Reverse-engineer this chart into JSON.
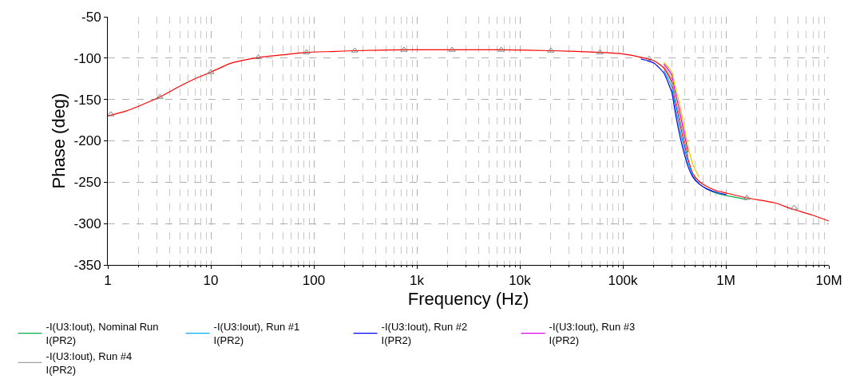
{
  "chart_data": {
    "type": "line",
    "xlabel": "Frequency (Hz)",
    "ylabel": "Phase (deg)",
    "log": "x",
    "grid": true,
    "legend": "bottom",
    "line_style": "solid",
    "xlim": [
      1,
      10000000
    ],
    "xticks": [
      1,
      10,
      100,
      {
        "value": 1000,
        "label": "1k"
      },
      {
        "value": 10000,
        "label": "10k"
      },
      {
        "value": 100000,
        "label": "100k"
      },
      {
        "value": 1000000,
        "label": "1M"
      },
      {
        "value": 10000000,
        "label": "10M"
      }
    ],
    "ylim": [
      -350,
      -50
    ],
    "yticks": [
      -50,
      -100,
      -150,
      -200,
      -250,
      -300,
      -350
    ],
    "x": [
      1,
      1.5,
      2,
      3.2,
      5,
      7,
      10,
      15,
      20,
      30,
      50,
      85,
      150,
      250,
      750,
      2200,
      6600,
      20000,
      60000,
      100000,
      150000,
      200000,
      250000,
      280000,
      300000,
      320000,
      350000,
      390000,
      430000,
      480000,
      550000,
      650000,
      800000,
      1000000,
      1600000,
      3000000,
      4300000,
      7000000,
      10000000
    ],
    "series": [
      {
        "color": "#ff0000",
        "values": [
          -170,
          -164,
          -158,
          -147,
          -134,
          -125,
          -117,
          -107,
          -103,
          -99,
          -96,
          -93,
          -92,
          -91,
          -90,
          -90,
          -90,
          -91,
          -93,
          -95,
          -99,
          -103,
          -112,
          -122,
          -130,
          -150,
          -172,
          -200,
          -222,
          -240,
          -249,
          -255,
          -260,
          -263,
          -269,
          -275,
          -282,
          -290,
          -297
        ]
      },
      {
        "name": "-I(U3:Iout), Nominal Run\nI(PR2)",
        "color": "#00b050",
        "values": [
          null,
          null,
          null,
          null,
          null,
          null,
          null,
          null,
          null,
          null,
          null,
          null,
          null,
          null,
          null,
          null,
          null,
          null,
          null,
          null,
          null,
          null,
          null,
          null,
          null,
          null,
          null,
          null,
          null,
          -243,
          -252,
          -258,
          -263,
          -266,
          -271,
          null,
          null,
          null,
          null
        ]
      },
      {
        "name": "-I(U3:Iout), Run #1\nI(PR2)",
        "color": "#00b0f0",
        "values": [
          null,
          null,
          null,
          null,
          null,
          null,
          null,
          null,
          null,
          null,
          null,
          null,
          null,
          null,
          null,
          null,
          null,
          null,
          null,
          null,
          null,
          null,
          -115,
          -127,
          -136,
          -156,
          -180,
          -206,
          -226,
          -243,
          null,
          null,
          null,
          null,
          null,
          null,
          null,
          null,
          null
        ]
      },
      {
        "name": "-I(U3:Iout), Run #2\nI(PR2)",
        "color": "#0000ff",
        "values": [
          null,
          null,
          null,
          null,
          null,
          null,
          null,
          null,
          null,
          null,
          null,
          null,
          null,
          null,
          null,
          null,
          null,
          null,
          null,
          null,
          -101,
          -106,
          -118,
          -132,
          -142,
          -163,
          -188,
          -213,
          -231,
          -244,
          -252,
          -258,
          -262,
          -265,
          null,
          null,
          null,
          null,
          null
        ]
      },
      {
        "name": "-I(U3:Iout), Run #3\nI(PR2)",
        "color": "#e000e0",
        "values": [
          null,
          null,
          null,
          null,
          null,
          null,
          null,
          null,
          null,
          null,
          null,
          null,
          null,
          null,
          null,
          null,
          null,
          null,
          null,
          null,
          null,
          null,
          -107,
          -115,
          -121,
          -139,
          -160,
          -188,
          -214,
          null,
          null,
          null,
          null,
          null,
          null,
          null,
          null,
          null,
          null
        ]
      },
      {
        "name": "-I(U3:Iout), Run #4\nI(PR2)",
        "color": "#a0a0a0",
        "values": [
          null,
          null,
          null,
          null,
          null,
          null,
          null,
          null,
          null,
          null,
          null,
          null,
          null,
          null,
          null,
          null,
          null,
          null,
          null,
          null,
          null,
          null,
          -110,
          -119,
          -127,
          -146,
          -168,
          -196,
          -219,
          null,
          null,
          null,
          null,
          null,
          null,
          null,
          null,
          null,
          null
        ]
      },
      {
        "color": "#ffc000",
        "values": [
          null,
          null,
          null,
          null,
          null,
          null,
          null,
          null,
          null,
          null,
          null,
          null,
          null,
          null,
          null,
          null,
          null,
          null,
          null,
          null,
          null,
          null,
          -105,
          -112,
          -117,
          -133,
          -152,
          -180,
          -207,
          -229,
          -244,
          null,
          null,
          null,
          null,
          null,
          null,
          null,
          null
        ]
      },
      {
        "type": "scatter",
        "marker": "triangle",
        "color": "#808080",
        "x": [
          1.07,
          3.2,
          10,
          29,
          85,
          250,
          750,
          2200,
          6600,
          20000,
          60000,
          180000,
          1600000,
          4600000
        ],
        "values": [
          -168,
          -147,
          -117,
          -99,
          -93,
          -91,
          -90,
          -90,
          -90,
          -91,
          -93,
          -101,
          -269,
          -281
        ]
      }
    ]
  }
}
